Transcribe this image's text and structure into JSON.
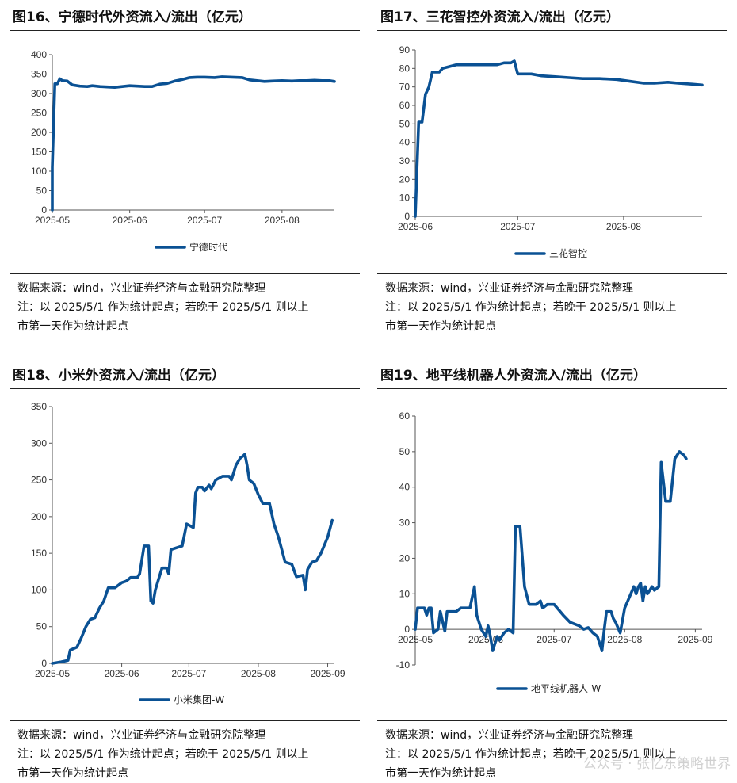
{
  "accent": "#0a5194",
  "note_line1": "数据来源：wind，兴业证券经济与金融研究院整理",
  "note_line2": "注：以 2025/5/1 作为统计起点；若晚于 2025/5/1 则以上",
  "note_line3": "市第一天作为统计起点",
  "watermark": "公众号 · 张忆东策略世界",
  "panels": [
    {
      "title": "图16、宁德时代外资流入/流出（亿元）"
    },
    {
      "title": "图17、三花智控外资流入/流出（亿元）"
    },
    {
      "title": "图18、小米外资流入/流出（亿元）"
    },
    {
      "title": "图19、地平线机器人外资流入/流出（亿元）"
    }
  ],
  "chart_data": [
    {
      "type": "line",
      "title": "图16、宁德时代外资流入/流出（亿元）",
      "ylim": [
        0,
        400
      ],
      "yticks": [
        "0",
        "50",
        "100",
        "150",
        "200",
        "250",
        "300",
        "350",
        "400"
      ],
      "xlim": [
        "2025-05-01",
        "2025-08-22"
      ],
      "xticks": [
        {
          "date": "2025-05-01",
          "label": "2025-05"
        },
        {
          "date": "2025-06-01",
          "label": "2025-06"
        },
        {
          "date": "2025-07-01",
          "label": "2025-07"
        },
        {
          "date": "2025-08-01",
          "label": "2025-08"
        }
      ],
      "grid": false,
      "legend_position": "bottom",
      "series": [
        {
          "name": "宁德时代",
          "points": [
            [
              "2025-05-01",
              0
            ],
            [
              "2025-05-01",
              110
            ],
            [
              "2025-05-02",
              325
            ],
            [
              "2025-05-03",
              325
            ],
            [
              "2025-05-04",
              338
            ],
            [
              "2025-05-05",
              333
            ],
            [
              "2025-05-07",
              332
            ],
            [
              "2025-05-09",
              322
            ],
            [
              "2025-05-12",
              319
            ],
            [
              "2025-05-15",
              318
            ],
            [
              "2025-05-17",
              320
            ],
            [
              "2025-05-20",
              318
            ],
            [
              "2025-05-23",
              317
            ],
            [
              "2025-05-26",
              316
            ],
            [
              "2025-05-29",
              318
            ],
            [
              "2025-06-01",
              320
            ],
            [
              "2025-06-04",
              319
            ],
            [
              "2025-06-07",
              318
            ],
            [
              "2025-06-10",
              318
            ],
            [
              "2025-06-13",
              324
            ],
            [
              "2025-06-16",
              326
            ],
            [
              "2025-06-19",
              332
            ],
            [
              "2025-06-22",
              336
            ],
            [
              "2025-06-25",
              341
            ],
            [
              "2025-06-28",
              342
            ],
            [
              "2025-07-01",
              342
            ],
            [
              "2025-07-05",
              341
            ],
            [
              "2025-07-08",
              343
            ],
            [
              "2025-07-12",
              342
            ],
            [
              "2025-07-16",
              341
            ],
            [
              "2025-07-19",
              335
            ],
            [
              "2025-07-22",
              333
            ],
            [
              "2025-07-25",
              331
            ],
            [
              "2025-07-28",
              332
            ],
            [
              "2025-08-01",
              333
            ],
            [
              "2025-08-05",
              332
            ],
            [
              "2025-08-08",
              333
            ],
            [
              "2025-08-11",
              333
            ],
            [
              "2025-08-14",
              334
            ],
            [
              "2025-08-17",
              333
            ],
            [
              "2025-08-20",
              333
            ],
            [
              "2025-08-22",
              331
            ]
          ]
        }
      ]
    },
    {
      "type": "line",
      "title": "图17、三花智控外资流入/流出（亿元）",
      "ylim": [
        0,
        90
      ],
      "yticks": [
        "0",
        "10",
        "20",
        "30",
        "40",
        "50",
        "60",
        "70",
        "80",
        "90"
      ],
      "xlim": [
        "2025-06-01",
        "2025-08-24"
      ],
      "xticks": [
        {
          "date": "2025-06-01",
          "label": "2025-06"
        },
        {
          "date": "2025-07-01",
          "label": "2025-07"
        },
        {
          "date": "2025-08-01",
          "label": "2025-08"
        }
      ],
      "grid": false,
      "legend_position": "bottom",
      "series": [
        {
          "name": "三花智控",
          "points": [
            [
              "2025-06-01",
              0
            ],
            [
              "2025-06-02",
              51
            ],
            [
              "2025-06-03",
              51
            ],
            [
              "2025-06-04",
              66
            ],
            [
              "2025-06-05",
              70
            ],
            [
              "2025-06-06",
              78
            ],
            [
              "2025-06-08",
              78
            ],
            [
              "2025-06-09",
              80
            ],
            [
              "2025-06-11",
              81
            ],
            [
              "2025-06-13",
              82
            ],
            [
              "2025-06-16",
              82
            ],
            [
              "2025-06-19",
              82
            ],
            [
              "2025-06-22",
              82
            ],
            [
              "2025-06-25",
              82
            ],
            [
              "2025-06-27",
              83
            ],
            [
              "2025-06-29",
              83
            ],
            [
              "2025-06-30",
              84
            ],
            [
              "2025-07-01",
              77
            ],
            [
              "2025-07-05",
              77
            ],
            [
              "2025-07-08",
              76
            ],
            [
              "2025-07-12",
              75.5
            ],
            [
              "2025-07-16",
              75
            ],
            [
              "2025-07-20",
              74.5
            ],
            [
              "2025-07-25",
              74.5
            ],
            [
              "2025-07-30",
              74
            ],
            [
              "2025-08-03",
              73
            ],
            [
              "2025-08-07",
              72
            ],
            [
              "2025-08-10",
              72
            ],
            [
              "2025-08-14",
              72.5
            ],
            [
              "2025-08-17",
              72
            ],
            [
              "2025-08-21",
              71.5
            ],
            [
              "2025-08-24",
              71
            ]
          ]
        }
      ]
    },
    {
      "type": "line",
      "title": "图18、小米外资流入/流出（亿元）",
      "ylim": [
        0,
        350
      ],
      "yticks": [
        "0",
        "50",
        "100",
        "150",
        "200",
        "250",
        "300",
        "350"
      ],
      "xlim": [
        "2025-05-01",
        "2025-09-04"
      ],
      "xticks": [
        {
          "date": "2025-05-01",
          "label": "2025-05"
        },
        {
          "date": "2025-06-01",
          "label": "2025-06"
        },
        {
          "date": "2025-07-01",
          "label": "2025-07"
        },
        {
          "date": "2025-08-01",
          "label": "2025-08"
        },
        {
          "date": "2025-09-01",
          "label": "2025-09"
        }
      ],
      "grid": false,
      "legend_position": "bottom",
      "series": [
        {
          "name": "小米集团-W",
          "points": [
            [
              "2025-05-01",
              0
            ],
            [
              "2025-05-05",
              2
            ],
            [
              "2025-05-08",
              4
            ],
            [
              "2025-05-09",
              18
            ],
            [
              "2025-05-12",
              22
            ],
            [
              "2025-05-14",
              35
            ],
            [
              "2025-05-16",
              50
            ],
            [
              "2025-05-18",
              60
            ],
            [
              "2025-05-20",
              62
            ],
            [
              "2025-05-22",
              75
            ],
            [
              "2025-05-24",
              85
            ],
            [
              "2025-05-26",
              103
            ],
            [
              "2025-05-29",
              103
            ],
            [
              "2025-06-01",
              110
            ],
            [
              "2025-06-03",
              112
            ],
            [
              "2025-06-05",
              117
            ],
            [
              "2025-06-08",
              117
            ],
            [
              "2025-06-09",
              122
            ],
            [
              "2025-06-11",
              160
            ],
            [
              "2025-06-13",
              160
            ],
            [
              "2025-06-14",
              85
            ],
            [
              "2025-06-15",
              82
            ],
            [
              "2025-06-16",
              100
            ],
            [
              "2025-06-17",
              110
            ],
            [
              "2025-06-19",
              130
            ],
            [
              "2025-06-21",
              130
            ],
            [
              "2025-06-22",
              122
            ],
            [
              "2025-06-23",
              155
            ],
            [
              "2025-06-26",
              158
            ],
            [
              "2025-06-28",
              160
            ],
            [
              "2025-06-30",
              190
            ],
            [
              "2025-07-03",
              185
            ],
            [
              "2025-07-04",
              232
            ],
            [
              "2025-07-05",
              240
            ],
            [
              "2025-07-07",
              240
            ],
            [
              "2025-07-08",
              235
            ],
            [
              "2025-07-10",
              243
            ],
            [
              "2025-07-11",
              238
            ],
            [
              "2025-07-13",
              250
            ],
            [
              "2025-07-16",
              255
            ],
            [
              "2025-07-19",
              255
            ],
            [
              "2025-07-20",
              250
            ],
            [
              "2025-07-22",
              270
            ],
            [
              "2025-07-24",
              280
            ],
            [
              "2025-07-25",
              282
            ],
            [
              "2025-07-26",
              285
            ],
            [
              "2025-07-27",
              270
            ],
            [
              "2025-07-28",
              250
            ],
            [
              "2025-07-30",
              245
            ],
            [
              "2025-08-01",
              230
            ],
            [
              "2025-08-03",
              218
            ],
            [
              "2025-08-06",
              218
            ],
            [
              "2025-08-08",
              190
            ],
            [
              "2025-08-10",
              172
            ],
            [
              "2025-08-13",
              138
            ],
            [
              "2025-08-16",
              135
            ],
            [
              "2025-08-18",
              118
            ],
            [
              "2025-08-21",
              120
            ],
            [
              "2025-08-22",
              100
            ],
            [
              "2025-08-23",
              128
            ],
            [
              "2025-08-25",
              138
            ],
            [
              "2025-08-27",
              140
            ],
            [
              "2025-08-29",
              150
            ],
            [
              "2025-09-01",
              172
            ],
            [
              "2025-09-03",
              195
            ]
          ]
        }
      ]
    },
    {
      "type": "line",
      "title": "图19、地平线机器人外资流入/流出（亿元）",
      "ylim": [
        -10,
        60
      ],
      "yticks": [
        "-10",
        "0",
        "10",
        "20",
        "30",
        "40",
        "50",
        "60"
      ],
      "xlim": [
        "2025-05-01",
        "2025-09-04"
      ],
      "xticks": [
        {
          "date": "2025-05-01",
          "label": "2025-05"
        },
        {
          "date": "2025-06-01",
          "label": "2025-06"
        },
        {
          "date": "2025-07-01",
          "label": "2025-07"
        },
        {
          "date": "2025-08-01",
          "label": "2025-08"
        },
        {
          "date": "2025-09-01",
          "label": "2025-09"
        }
      ],
      "grid": false,
      "legend_position": "bottom",
      "series": [
        {
          "name": "地平线机器人-W",
          "points": [
            [
              "2025-05-01",
              0
            ],
            [
              "2025-05-02",
              6
            ],
            [
              "2025-05-05",
              6
            ],
            [
              "2025-05-06",
              4
            ],
            [
              "2025-05-07",
              6
            ],
            [
              "2025-05-08",
              6
            ],
            [
              "2025-05-09",
              -1
            ],
            [
              "2025-05-11",
              0
            ],
            [
              "2025-05-12",
              5
            ],
            [
              "2025-05-14",
              -0.5
            ],
            [
              "2025-05-15",
              5
            ],
            [
              "2025-05-19",
              5
            ],
            [
              "2025-05-21",
              6
            ],
            [
              "2025-05-23",
              6
            ],
            [
              "2025-05-25",
              6
            ],
            [
              "2025-05-27",
              12
            ],
            [
              "2025-05-28",
              4
            ],
            [
              "2025-05-30",
              0
            ],
            [
              "2025-06-01",
              -2
            ],
            [
              "2025-06-02",
              1
            ],
            [
              "2025-06-03",
              -2
            ],
            [
              "2025-06-04",
              -6
            ],
            [
              "2025-06-06",
              -2
            ],
            [
              "2025-06-07",
              -3
            ],
            [
              "2025-06-09",
              -1
            ],
            [
              "2025-06-11",
              0
            ],
            [
              "2025-06-13",
              -1
            ],
            [
              "2025-06-14",
              29
            ],
            [
              "2025-06-16",
              29
            ],
            [
              "2025-06-18",
              12
            ],
            [
              "2025-06-20",
              7
            ],
            [
              "2025-06-23",
              7
            ],
            [
              "2025-06-25",
              8
            ],
            [
              "2025-06-26",
              6
            ],
            [
              "2025-06-28",
              7
            ],
            [
              "2025-07-01",
              7
            ],
            [
              "2025-07-05",
              4
            ],
            [
              "2025-07-08",
              2
            ],
            [
              "2025-07-12",
              1
            ],
            [
              "2025-07-14",
              0
            ],
            [
              "2025-07-16",
              0.5
            ],
            [
              "2025-07-18",
              -1
            ],
            [
              "2025-07-20",
              -2
            ],
            [
              "2025-07-22",
              -6
            ],
            [
              "2025-07-23",
              0
            ],
            [
              "2025-07-24",
              5
            ],
            [
              "2025-07-26",
              5
            ],
            [
              "2025-07-27",
              3
            ],
            [
              "2025-07-28",
              2
            ],
            [
              "2025-07-30",
              -1
            ],
            [
              "2025-08-01",
              6
            ],
            [
              "2025-08-03",
              9
            ],
            [
              "2025-08-05",
              12
            ],
            [
              "2025-08-06",
              10
            ],
            [
              "2025-08-07",
              12
            ],
            [
              "2025-08-08",
              13
            ],
            [
              "2025-08-09",
              8
            ],
            [
              "2025-08-10",
              12
            ],
            [
              "2025-08-11",
              10
            ],
            [
              "2025-08-13",
              12
            ],
            [
              "2025-08-14",
              11
            ],
            [
              "2025-08-16",
              12
            ],
            [
              "2025-08-17",
              47
            ],
            [
              "2025-08-19",
              36
            ],
            [
              "2025-08-21",
              36
            ],
            [
              "2025-08-23",
              48
            ],
            [
              "2025-08-25",
              50
            ],
            [
              "2025-08-27",
              49
            ],
            [
              "2025-08-28",
              48
            ]
          ]
        }
      ]
    }
  ]
}
